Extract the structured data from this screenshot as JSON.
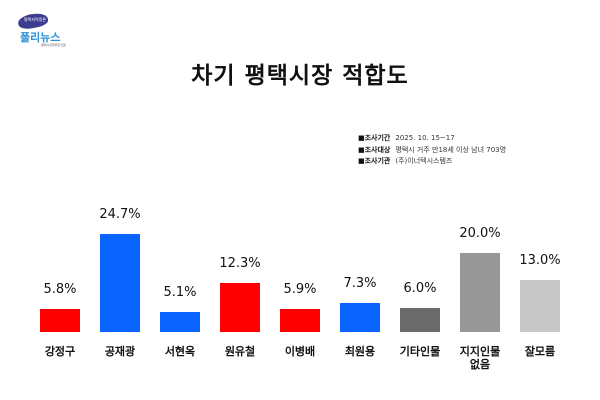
{
  "logo": {
    "tagline": "평택지역정론",
    "name": "폴리뉴스",
    "sub": "평택시민을위한신문"
  },
  "title": "차기 평택시장 적합도",
  "survey_info": [
    {
      "key": "■조사기간",
      "value": "2025. 10. 15~17"
    },
    {
      "key": "■조사대상",
      "value": "평택시 거주 만18세 이상 남녀 703명"
    },
    {
      "key": "■조사기관",
      "value": "(주)이너텍시스템즈"
    }
  ],
  "chart_data": {
    "type": "bar",
    "title": "차기 평택시장 적합도",
    "categories": [
      "강정구",
      "공재광",
      "서현옥",
      "원유철",
      "이병배",
      "최원용",
      "기타인물",
      "지지인물 없음",
      "잘모름"
    ],
    "values": [
      5.8,
      24.7,
      5.1,
      12.3,
      5.9,
      7.3,
      6.0,
      20.0,
      13.0
    ],
    "labels": [
      "5.8%",
      "24.7%",
      "5.1%",
      "12.3%",
      "5.9%",
      "7.3%",
      "6.0%",
      "20.0%",
      "13.0%"
    ],
    "colors": [
      "#ff0000",
      "#0a64ff",
      "#0a64ff",
      "#ff0000",
      "#ff0000",
      "#0a64ff",
      "#6b6b6b",
      "#979797",
      "#c8c8c8"
    ],
    "xlabel": "",
    "ylabel": "",
    "ylim": [
      0,
      30
    ],
    "grid": false,
    "legend": "none"
  }
}
